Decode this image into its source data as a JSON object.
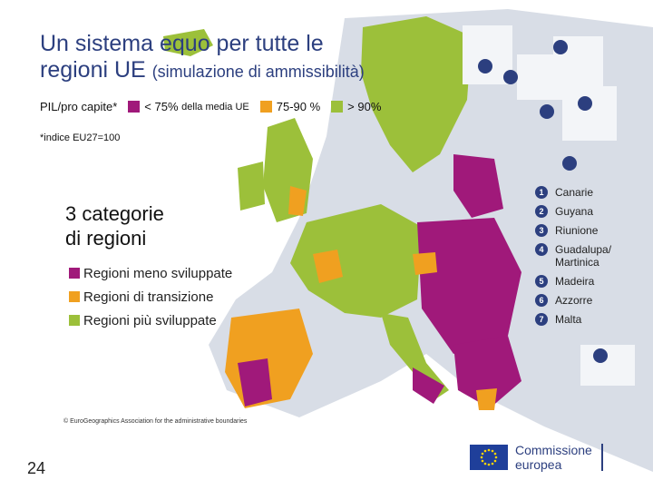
{
  "title": {
    "line1": "Un sistema equo per tutte le",
    "line2": "regioni UE",
    "subtitle": "(simulazione di ammissibilità)"
  },
  "legend": {
    "label": "PIL/pro capite*",
    "items": [
      {
        "text": "< 75%",
        "small": "della media UE",
        "color": "#a0197a"
      },
      {
        "text": "75-90 %",
        "small": "",
        "color": "#f0a020"
      },
      {
        "text": "> 90%",
        "small": "",
        "color": "#9cc03a"
      }
    ]
  },
  "footnote": "*indice EU27=100",
  "categories": {
    "title_line1": "3 categorie",
    "title_line2": "di regioni",
    "items": [
      {
        "label": "Regioni meno sviluppate",
        "color": "#a0197a"
      },
      {
        "label": "Regioni di transizione",
        "color": "#f0a020"
      },
      {
        "label": "Regioni più sviluppate",
        "color": "#9cc03a"
      }
    ]
  },
  "insets": [
    {
      "num": "1",
      "label": "Canarie"
    },
    {
      "num": "2",
      "label": "Guyana"
    },
    {
      "num": "3",
      "label": "Riunione"
    },
    {
      "num": "4",
      "label": "Guadalupa/ Martinica"
    },
    {
      "num": "5",
      "label": "Madeira"
    },
    {
      "num": "6",
      "label": "Azzorre"
    },
    {
      "num": "7",
      "label": "Malta"
    }
  ],
  "copyright": "© EuroGeographics Association for the administrative boundaries",
  "page_number": "24",
  "logo": {
    "line1": "Commissione",
    "line2": "europea"
  },
  "colors": {
    "less_developed": "#a0197a",
    "transition": "#f0a020",
    "more_developed": "#9cc03a",
    "non_eu": "#d8dde6",
    "accent": "#2c3f7f"
  }
}
